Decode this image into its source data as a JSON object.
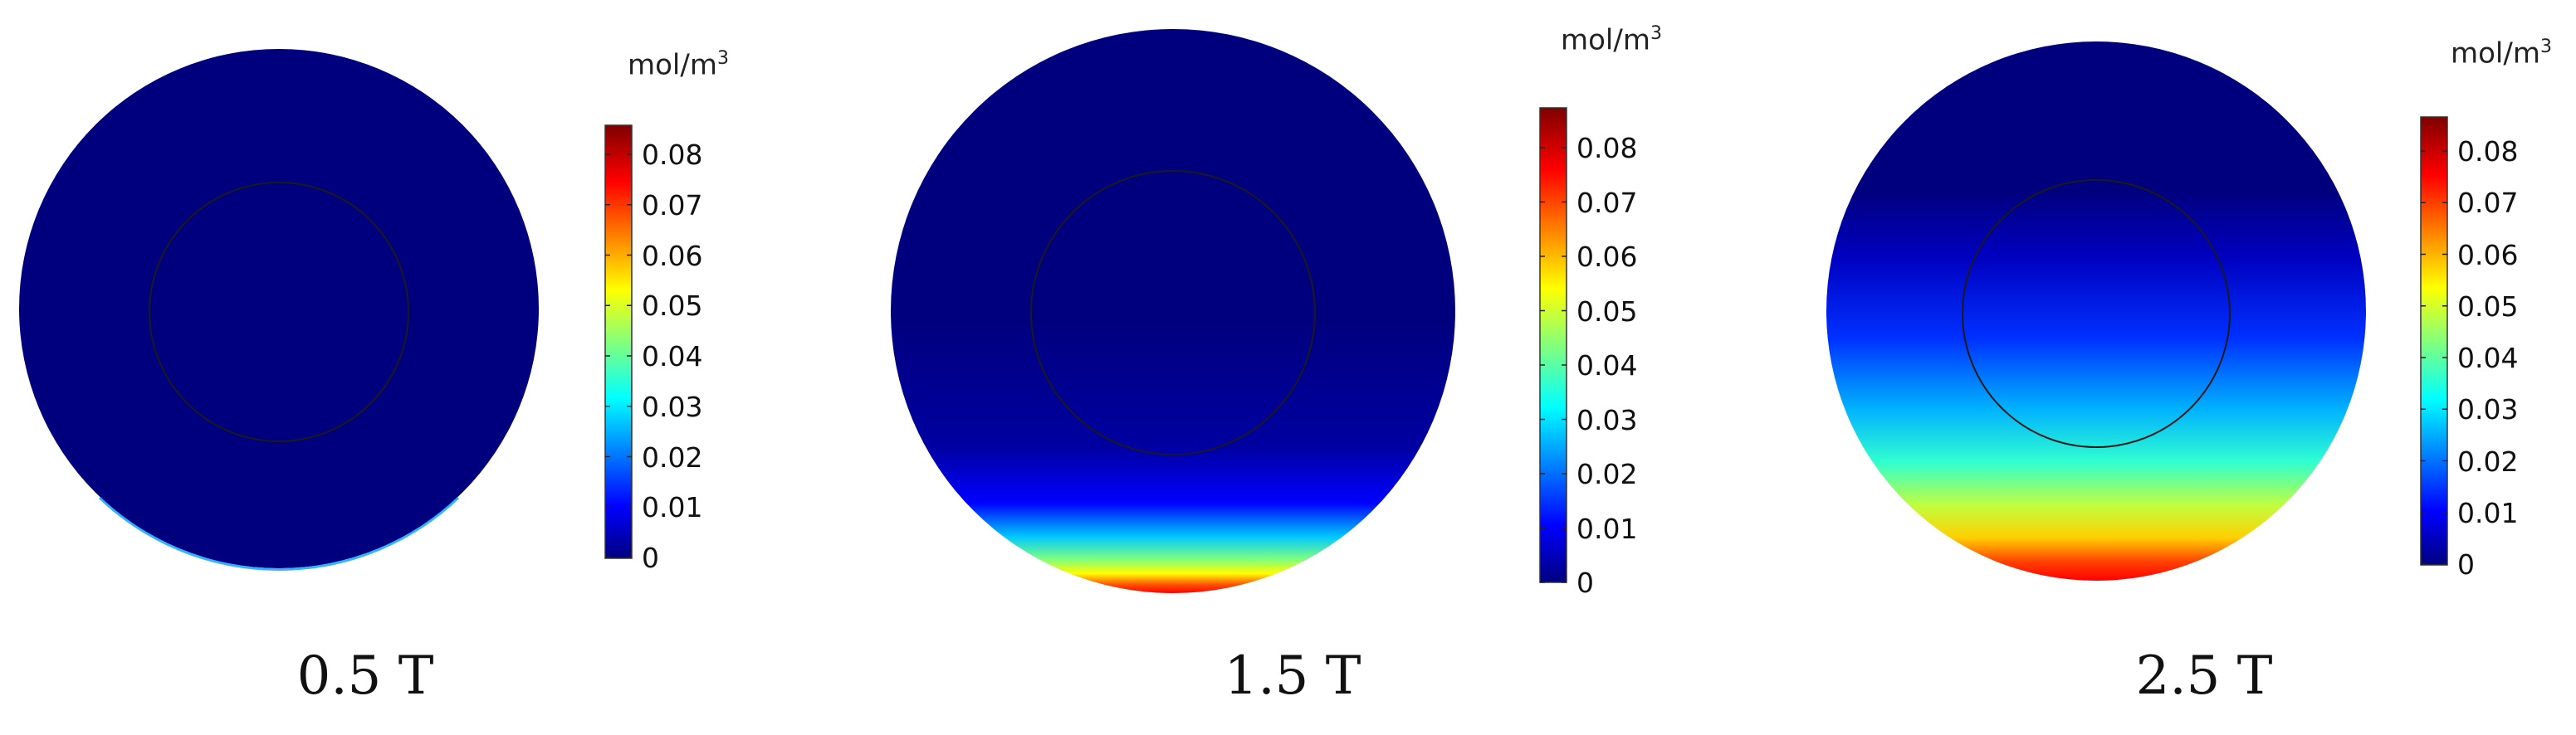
{
  "colormap": [
    "#00007f",
    "#0000ff",
    "#00ffff",
    "#ffff00",
    "#ff0000",
    "#7f0000"
  ],
  "colorbar": {
    "unit_prefix": "mol/m",
    "unit_exponent": "3",
    "ticks": [
      "0.08",
      "0.07",
      "0.06",
      "0.05",
      "0.04",
      "0.03",
      "0.02",
      "0.01",
      "0"
    ]
  },
  "panels": [
    {
      "caption": "0.5 T"
    },
    {
      "caption": "1.5 T"
    },
    {
      "caption": "2.5 T"
    }
  ]
}
